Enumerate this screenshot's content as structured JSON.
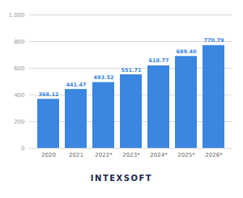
{
  "chart_data": {
    "type": "bar",
    "categories": [
      "2020",
      "2021",
      "2022*",
      "2023*",
      "2024*",
      "2025*",
      "2026*"
    ],
    "values": [
      368.12,
      441.47,
      493.52,
      551.71,
      618.77,
      689.4,
      770.79
    ],
    "value_labels": [
      "368.12",
      "441.47",
      "493.52",
      "551.71",
      "618.77",
      "689.40",
      "770.79"
    ],
    "data_labels": true,
    "color": "#3a86e0",
    "ylim": [
      0,
      1000
    ],
    "yticks": [
      0,
      200,
      400,
      600,
      800,
      1000
    ],
    "grid": true,
    "caption": "INTEXSOFT"
  }
}
